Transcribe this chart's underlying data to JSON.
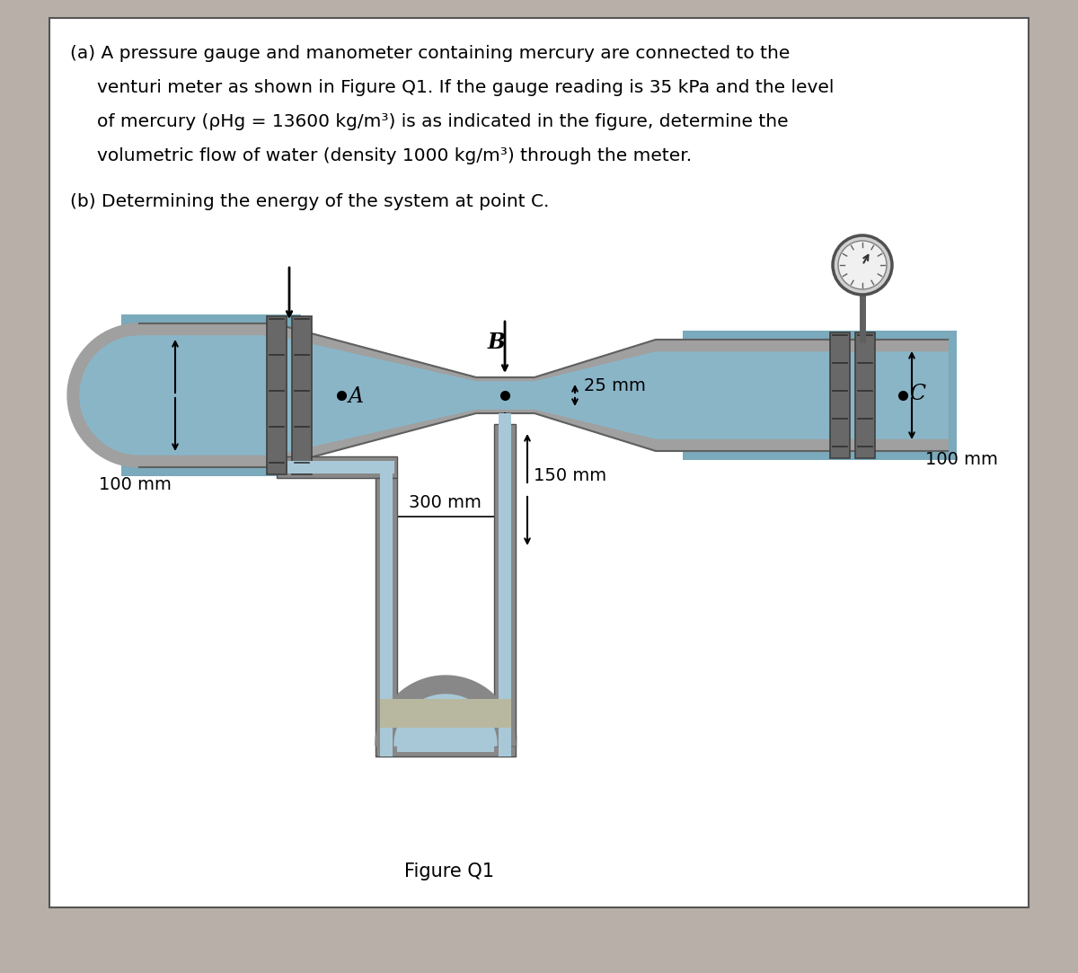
{
  "figure_caption": "Figure Q1",
  "label_A": "A",
  "label_B": "B",
  "label_C": "C",
  "dim_100mm_left": "100 mm",
  "dim_300mm": "300 mm",
  "dim_25mm": "25 mm",
  "dim_100mm_right": "100 mm",
  "dim_150mm": "150 mm",
  "text_line1": "(a) A pressure gauge and manometer containing mercury are connected to the",
  "text_line2": "venturi meter as shown in Figure Q1. If the gauge reading is 35 kPa and the level",
  "text_line3": "of mercury (ρHg = 13600 kg/m³) is as indicated in the figure, determine the",
  "text_line4": "volumetric flow of water (density 1000 kg/m³) through the meter.",
  "text_line5": "(b) Determining the energy of the system at point C.",
  "desk_color": "#b8b0a8",
  "box_color": "#ffffff",
  "pipe_gray": "#a0a0a0",
  "pipe_dark": "#787878",
  "pipe_light": "#d0d0d0",
  "water_color": "#88b8cc",
  "flange_color": "#686868",
  "tube_outer": "#888888",
  "tube_fill": "#a8c8d8",
  "gauge_bg": "#e8e8e8"
}
